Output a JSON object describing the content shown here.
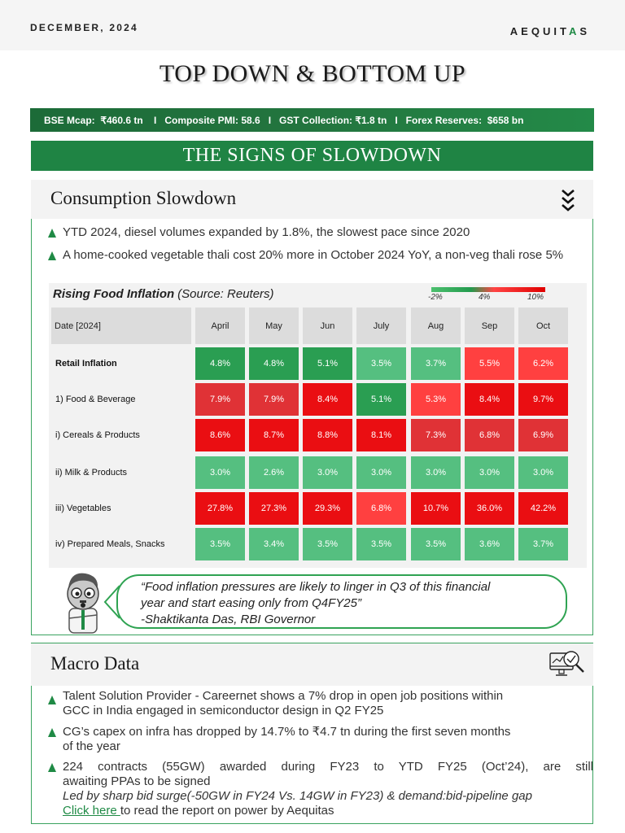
{
  "header": {
    "date": "DECEMBER, 2024",
    "brand_prefix": "AEQUIT",
    "brand_accent": "A",
    "brand_suffix": "S"
  },
  "title": "TOP DOWN & BOTTOM UP",
  "ticker": {
    "items": [
      "BSE Mcap:  ₹460.6 tn",
      "Composite PMI: 58.6",
      "GST Collection: ₹1.8 tn",
      "Forex Reserves:  $658 bn"
    ],
    "separator": "I",
    "full": "BSE Mcap:  ₹460.6 tn    I   Composite PMI: 58.6   I   GST Collection: ₹1.8 tn   I   Forex Reserves:  $658 bn"
  },
  "section_banner": "THE SIGNS OF SLOWDOWN",
  "consumption": {
    "title": "Consumption Slowdown",
    "icon": "triple-chevron-down-icon",
    "bullets": [
      "YTD 2024, diesel volumes expanded by 1.8%, the slowest pace since 2020",
      "A home-cooked vegetable thali cost 20% more in October 2024 YoY, a non-veg thali rose 5%"
    ]
  },
  "chart_data": {
    "type": "heatmap",
    "title": "Rising Food Inflation",
    "subtitle": "(Source: Reuters)",
    "legend": {
      "labels": [
        "-2%",
        "4%",
        "10%"
      ],
      "colors": [
        "#4cc06f",
        "#239a4d",
        "#ff4444",
        "#e00000"
      ]
    },
    "row_header": "Date [2024]",
    "categories": [
      "April",
      "May",
      "Jun",
      "July",
      "Aug",
      "Sep",
      "Oct"
    ],
    "series": [
      {
        "name": "Retail Inflation",
        "values": [
          4.8,
          4.8,
          5.1,
          3.5,
          3.7,
          5.5,
          6.2
        ],
        "labels": [
          "4.8%",
          "4.8%",
          "5.1%",
          "3.5%",
          "3.7%",
          "5.5%",
          "6.2%"
        ],
        "colors": [
          "#2a9e52",
          "#2a9e52",
          "#2a9e52",
          "#55bf80",
          "#55bf80",
          "#ff4040",
          "#ff4040"
        ]
      },
      {
        "name": "1) Food & Beverage",
        "values": [
          7.9,
          7.9,
          8.4,
          5.1,
          5.3,
          8.4,
          9.7
        ],
        "labels": [
          "7.9%",
          "7.9%",
          "8.4%",
          "5.1%",
          "5.3%",
          "8.4%",
          "9.7%"
        ],
        "colors": [
          "#e03236",
          "#e03236",
          "#ea0e12",
          "#2a9e52",
          "#ff4040",
          "#ea0e12",
          "#ea0e12"
        ]
      },
      {
        "name": "i) Cereals & Products",
        "values": [
          8.6,
          8.7,
          8.8,
          8.1,
          7.3,
          6.8,
          6.9
        ],
        "labels": [
          "8.6%",
          "8.7%",
          "8.8%",
          "8.1%",
          "7.3%",
          "6.8%",
          "6.9%"
        ],
        "colors": [
          "#ea0e12",
          "#ea0e12",
          "#ea0e12",
          "#ea0e12",
          "#e03236",
          "#e03236",
          "#e03236"
        ]
      },
      {
        "name": "ii) Milk & Products",
        "values": [
          3.0,
          2.6,
          3.0,
          3.0,
          3.0,
          3.0,
          3.0
        ],
        "labels": [
          "3.0%",
          "2.6%",
          "3.0%",
          "3.0%",
          "3.0%",
          "3.0%",
          "3.0%"
        ],
        "colors": [
          "#55bf80",
          "#55bf80",
          "#55bf80",
          "#55bf80",
          "#55bf80",
          "#55bf80",
          "#55bf80"
        ]
      },
      {
        "name": "iii) Vegetables",
        "values": [
          27.8,
          27.3,
          29.3,
          6.8,
          10.7,
          36.0,
          42.2
        ],
        "labels": [
          "27.8%",
          "27.3%",
          "29.3%",
          "6.8%",
          "10.7%",
          "36.0%",
          "42.2%"
        ],
        "colors": [
          "#ea0e12",
          "#ea0e12",
          "#ea0e12",
          "#ff4040",
          "#ea0e12",
          "#ea0e12",
          "#ea0e12"
        ]
      },
      {
        "name": "iv) Prepared Meals, Snacks",
        "values": [
          3.5,
          3.4,
          3.5,
          3.5,
          3.5,
          3.6,
          3.7
        ],
        "labels": [
          "3.5%",
          "3.4%",
          "3.5%",
          "3.5%",
          "3.5%",
          "3.6%",
          "3.7%"
        ],
        "colors": [
          "#55bf80",
          "#55bf80",
          "#55bf80",
          "#55bf80",
          "#55bf80",
          "#55bf80",
          "#55bf80"
        ]
      }
    ]
  },
  "quote": {
    "line1": "“Food inflation pressures are likely to linger in Q3 of this financial",
    "line2": "year and start easing only from Q4FY25”",
    "attribution": "-Shaktikanta Das, RBI Governor"
  },
  "macro": {
    "title": "Macro Data",
    "icon": "monitor-analytics-icon",
    "bullets": [
      {
        "line1": "Talent Solution Provider - Careernet shows a 7% drop in open job positions within",
        "line2": "GCC in India engaged in semiconductor design in Q2 FY25"
      },
      {
        "line1": "CG’s capex on infra has dropped by 14.7% to ₹4.7 tn during the first seven months",
        "line2": "of the year"
      },
      {
        "line1": "224 contracts (55GW) awarded during FY23 to YTD FY25 (Oct’24), are still",
        "line2": "awaiting PPAs to be signed",
        "note": "Led by sharp bid surge(-50GW in FY24 Vs. 14GW in FY23) & demand:bid-pipeline gap"
      }
    ],
    "link_text": "Click here ",
    "link_suffix": "to read the report on power by Aequitas"
  }
}
